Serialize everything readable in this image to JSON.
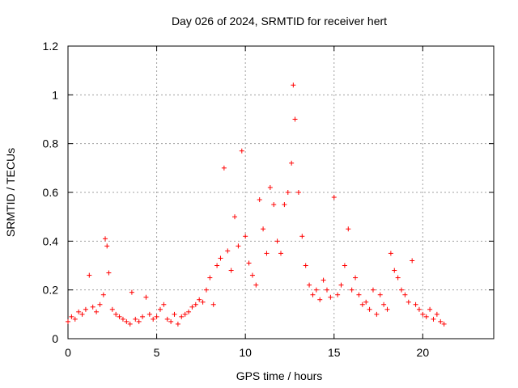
{
  "chart_data": {
    "type": "scatter",
    "title": "Day 026 of 2024, SRMTID for receiver hert",
    "xlabel": "GPS time / hours",
    "ylabel": "SRMTID / TECUs",
    "xlim": [
      0,
      24
    ],
    "ylim": [
      0,
      1.2
    ],
    "xticks": [
      0,
      5,
      10,
      15,
      20
    ],
    "yticks": [
      0,
      0.2,
      0.4,
      0.6,
      0.8,
      1,
      1.2
    ],
    "xtick_labels": [
      "0",
      "5",
      "10",
      "15",
      "20"
    ],
    "ytick_labels": [
      "0",
      "0.2",
      "0.4",
      "0.6",
      "0.8",
      "1",
      "1.2"
    ],
    "grid": true,
    "marker": "+",
    "color": "#ff0000",
    "series": [
      {
        "name": "SRMTID",
        "x": [
          0.0,
          0.2,
          0.4,
          0.6,
          0.8,
          1.0,
          1.2,
          1.4,
          1.6,
          1.8,
          2.0,
          2.1,
          2.2,
          2.3,
          2.5,
          2.7,
          2.9,
          3.1,
          3.3,
          3.5,
          3.6,
          3.8,
          4.0,
          4.2,
          4.4,
          4.6,
          4.8,
          5.0,
          5.2,
          5.4,
          5.6,
          5.8,
          6.0,
          6.2,
          6.4,
          6.6,
          6.8,
          7.0,
          7.2,
          7.4,
          7.6,
          7.8,
          8.0,
          8.2,
          8.4,
          8.6,
          8.8,
          9.0,
          9.2,
          9.4,
          9.6,
          9.8,
          10.0,
          10.2,
          10.4,
          10.6,
          10.8,
          11.0,
          11.2,
          11.4,
          11.6,
          11.8,
          12.0,
          12.2,
          12.4,
          12.6,
          12.7,
          12.8,
          13.0,
          13.2,
          13.4,
          13.6,
          13.8,
          14.0,
          14.2,
          14.4,
          14.6,
          14.8,
          15.0,
          15.2,
          15.4,
          15.6,
          15.8,
          16.0,
          16.2,
          16.4,
          16.6,
          16.8,
          17.0,
          17.2,
          17.4,
          17.6,
          17.8,
          18.0,
          18.2,
          18.4,
          18.6,
          18.8,
          19.0,
          19.2,
          19.4,
          19.6,
          19.8,
          20.0,
          20.2,
          20.4,
          20.6,
          20.8,
          21.0,
          21.2
        ],
        "y": [
          0.07,
          0.09,
          0.08,
          0.11,
          0.1,
          0.12,
          0.26,
          0.13,
          0.11,
          0.14,
          0.18,
          0.41,
          0.38,
          0.27,
          0.12,
          0.1,
          0.09,
          0.08,
          0.07,
          0.06,
          0.19,
          0.08,
          0.07,
          0.09,
          0.17,
          0.1,
          0.08,
          0.09,
          0.12,
          0.14,
          0.08,
          0.07,
          0.1,
          0.06,
          0.09,
          0.1,
          0.11,
          0.13,
          0.14,
          0.16,
          0.15,
          0.2,
          0.25,
          0.14,
          0.3,
          0.33,
          0.7,
          0.36,
          0.28,
          0.5,
          0.38,
          0.77,
          0.42,
          0.31,
          0.26,
          0.22,
          0.57,
          0.45,
          0.35,
          0.62,
          0.55,
          0.4,
          0.35,
          0.55,
          0.6,
          0.72,
          1.04,
          0.9,
          0.6,
          0.42,
          0.3,
          0.22,
          0.18,
          0.2,
          0.16,
          0.24,
          0.2,
          0.17,
          0.58,
          0.18,
          0.22,
          0.3,
          0.45,
          0.2,
          0.25,
          0.18,
          0.14,
          0.15,
          0.12,
          0.2,
          0.1,
          0.18,
          0.14,
          0.12,
          0.35,
          0.28,
          0.25,
          0.2,
          0.18,
          0.15,
          0.32,
          0.14,
          0.12,
          0.1,
          0.09,
          0.12,
          0.08,
          0.1,
          0.07,
          0.06
        ]
      }
    ]
  }
}
